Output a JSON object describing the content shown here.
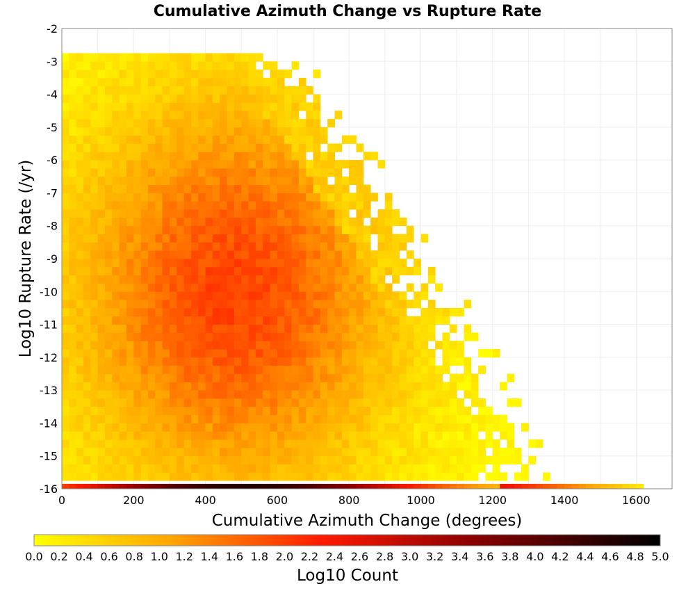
{
  "chart_data": {
    "type": "heatmap",
    "title": "Cumulative Azimuth Change vs Rupture Rate",
    "xlabel": "Cumulative Azimuth Change (degrees)",
    "ylabel": "Log10 Rupture Rate (/yr)",
    "xlim": [
      0,
      1700
    ],
    "ylim": [
      -16,
      -2
    ],
    "xticks": [
      0,
      200,
      400,
      600,
      800,
      1000,
      1200,
      1400,
      1600
    ],
    "yticks": [
      -2,
      -3,
      -4,
      -5,
      -6,
      -7,
      -8,
      -9,
      -10,
      -11,
      -12,
      -13,
      -14,
      -15,
      -16
    ],
    "bin_width_x": 20,
    "bin_height_y": 0.25,
    "colorbar": {
      "label": "Log10 Count",
      "range": [
        0.0,
        5.0
      ],
      "ticks": [
        "0.0",
        "0.2",
        "0.4",
        "0.6",
        "0.8",
        "1.0",
        "1.2",
        "1.4",
        "1.6",
        "1.8",
        "2.0",
        "2.2",
        "2.4",
        "2.6",
        "2.8",
        "3.0",
        "3.2",
        "3.4",
        "3.6",
        "3.8",
        "4.0",
        "4.2",
        "4.4",
        "4.6",
        "4.8",
        "5.0"
      ],
      "colors": [
        "#ffff00",
        "#ffa500",
        "#ff0000",
        "#800000",
        "#000000"
      ]
    },
    "density_model": {
      "description": "log10 count per bin",
      "peak_x": 470,
      "peak_y": -10.2,
      "peak_value": 1.95,
      "bottom_row_y": -16,
      "bottom_row_peak_value": 4.6,
      "bottom_row_peak_x": 500,
      "bottom_row_extent_x": 1620,
      "max_x_extent_at_top": 560,
      "max_x_extent_at_bottom": 1240,
      "top_y_extent": -3.0
    }
  }
}
